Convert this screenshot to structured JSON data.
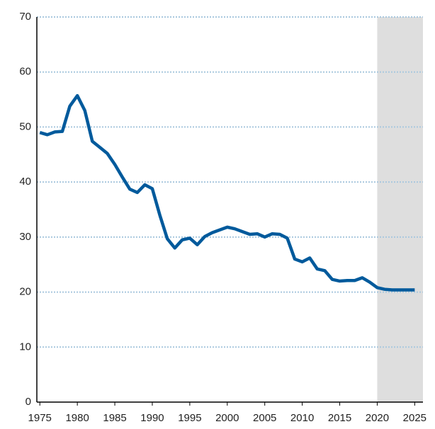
{
  "chart_data": {
    "type": "line",
    "x": [
      1975,
      1976,
      1977,
      1978,
      1979,
      1980,
      1981,
      1982,
      1983,
      1984,
      1985,
      1986,
      1987,
      1988,
      1989,
      1990,
      1991,
      1992,
      1993,
      1994,
      1995,
      1996,
      1997,
      1998,
      1999,
      2000,
      2001,
      2002,
      2003,
      2004,
      2005,
      2006,
      2007,
      2008,
      2009,
      2010,
      2011,
      2012,
      2013,
      2014,
      2015,
      2016,
      2017,
      2018,
      2019,
      2020,
      2021,
      2022,
      2023,
      2024,
      2025
    ],
    "series": [
      {
        "color": "#005a9c",
        "values": [
          49.0,
          48.6,
          49.1,
          49.2,
          53.8,
          55.7,
          53.0,
          47.4,
          46.3,
          45.2,
          43.2,
          40.9,
          38.7,
          38.1,
          39.5,
          38.8,
          34.0,
          29.7,
          28.0,
          29.5,
          29.8,
          28.6,
          30.1,
          30.8,
          31.3,
          31.8,
          31.5,
          31.0,
          30.5,
          30.6,
          30.0,
          30.6,
          30.5,
          29.8,
          26.0,
          25.5,
          26.2,
          24.2,
          23.9,
          22.3,
          22.0,
          22.1,
          22.1,
          22.6,
          21.8,
          20.8,
          20.5,
          20.4,
          20.4,
          20.4,
          20.4
        ]
      }
    ],
    "xlim": [
      1974.6,
      2026.1
    ],
    "xticks": [
      1975,
      1980,
      1985,
      1990,
      1995,
      2000,
      2005,
      2010,
      2015,
      2020,
      2025
    ],
    "ylim": [
      0,
      70
    ],
    "yticks": [
      0,
      10,
      20,
      30,
      40,
      50,
      60,
      70
    ],
    "grid": true,
    "shade": {
      "from": 2020,
      "to": 2026.1,
      "color": "#dedede"
    }
  }
}
